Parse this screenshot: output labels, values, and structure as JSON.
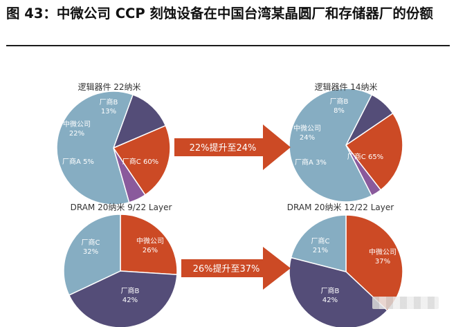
{
  "figure": {
    "title": "图 43：中微公司 CCP 刻蚀设备在中国台湾某晶圆厂和存储器厂的份额"
  },
  "arrows": [
    {
      "label": "22%提升至24%"
    },
    {
      "label": "26%提升至37%"
    }
  ],
  "colors": {
    "中微公司": "#cc4a25",
    "厂商A": "#8a5a9c",
    "厂商B": "#544d78",
    "厂商C": "#86adc2",
    "arrow": "#cc4a25"
  },
  "chart_data": [
    {
      "type": "pie",
      "title": "逻辑器件 22纳米",
      "slices": [
        {
          "label": "厂商B",
          "value": 13,
          "display": "13%"
        },
        {
          "label": "中微公司",
          "value": 22,
          "display": "22%"
        },
        {
          "label": "厂商A",
          "value": 5,
          "display": "5%"
        },
        {
          "label": "厂商C",
          "value": 60,
          "display": "60%"
        }
      ]
    },
    {
      "type": "pie",
      "title": "逻辑器件 14纳米",
      "slices": [
        {
          "label": "厂商B",
          "value": 8,
          "display": "8%"
        },
        {
          "label": "中微公司",
          "value": 24,
          "display": "24%"
        },
        {
          "label": "厂商A",
          "value": 3,
          "display": "3%"
        },
        {
          "label": "厂商C",
          "value": 65,
          "display": "65%"
        }
      ]
    },
    {
      "type": "pie",
      "title": "DRAM 20纳米 9/22 Layer",
      "slices": [
        {
          "label": "中微公司",
          "value": 26,
          "display": "26%"
        },
        {
          "label": "厂商B",
          "value": 42,
          "display": "42%"
        },
        {
          "label": "厂商C",
          "value": 32,
          "display": "32%"
        }
      ]
    },
    {
      "type": "pie",
      "title": "DRAM 20纳米 12/22 Layer",
      "slices": [
        {
          "label": "中微公司",
          "value": 37,
          "display": "37%"
        },
        {
          "label": "厂商B",
          "value": 42,
          "display": "42%"
        },
        {
          "label": "厂商C",
          "value": 21,
          "display": "21%"
        }
      ]
    }
  ]
}
